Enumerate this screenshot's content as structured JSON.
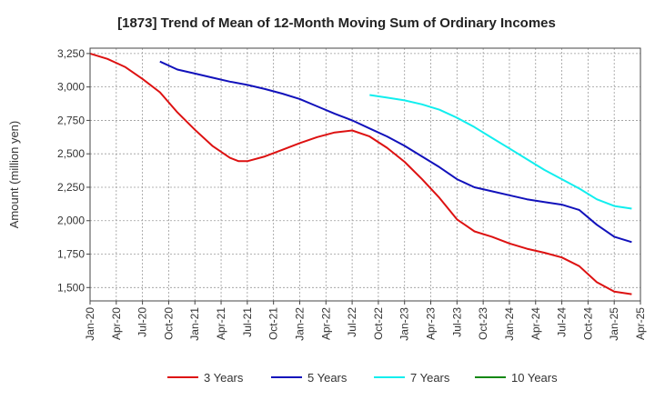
{
  "chart_data": {
    "type": "line",
    "title": "[1873]  Trend of Mean of 12-Month Moving Sum of Ordinary Incomes",
    "xlabel": "",
    "ylabel": "Amount (million yen)",
    "ylim": [
      1400,
      3290
    ],
    "y_ticks": [
      1500,
      1750,
      2000,
      2250,
      2500,
      2750,
      3000,
      3250
    ],
    "y_tick_labels": [
      "1,500",
      "1,750",
      "2,000",
      "2,250",
      "2,500",
      "2,750",
      "3,000",
      "3,250"
    ],
    "x_range": [
      0,
      60
    ],
    "x_tick_labels": [
      "Jan-20",
      "Apr-20",
      "Jul-20",
      "Oct-20",
      "Jan-21",
      "Apr-21",
      "Jul-21",
      "Oct-21",
      "Jan-22",
      "Apr-22",
      "Jul-22",
      "Oct-22",
      "Jan-23",
      "Apr-23",
      "Jul-23",
      "Oct-23",
      "Jan-24",
      "Apr-24",
      "Jul-24",
      "Oct-24",
      "Jan-25",
      "Apr-25"
    ],
    "x_tick_step_months": 3,
    "legend_position": "bottom",
    "grid": true,
    "series": [
      {
        "name": "3 Years",
        "color": "#dd1111",
        "points": [
          [
            0,
            3250
          ],
          [
            2,
            3210
          ],
          [
            4,
            3150
          ],
          [
            6,
            3060
          ],
          [
            8,
            2960
          ],
          [
            10,
            2810
          ],
          [
            12,
            2680
          ],
          [
            14,
            2560
          ],
          [
            16,
            2470
          ],
          [
            17,
            2445
          ],
          [
            18,
            2445
          ],
          [
            20,
            2480
          ],
          [
            22,
            2530
          ],
          [
            24,
            2580
          ],
          [
            26,
            2625
          ],
          [
            28,
            2660
          ],
          [
            30,
            2675
          ],
          [
            32,
            2630
          ],
          [
            34,
            2545
          ],
          [
            36,
            2440
          ],
          [
            38,
            2310
          ],
          [
            40,
            2170
          ],
          [
            42,
            2010
          ],
          [
            44,
            1920
          ],
          [
            46,
            1880
          ],
          [
            48,
            1830
          ],
          [
            50,
            1790
          ],
          [
            52,
            1760
          ],
          [
            54,
            1725
          ],
          [
            56,
            1660
          ],
          [
            58,
            1540
          ],
          [
            60,
            1470
          ],
          [
            62,
            1450
          ]
        ]
      },
      {
        "name": "5 Years",
        "color": "#1111bb",
        "points": [
          [
            8,
            3190
          ],
          [
            10,
            3130
          ],
          [
            12,
            3100
          ],
          [
            14,
            3070
          ],
          [
            16,
            3040
          ],
          [
            18,
            3015
          ],
          [
            20,
            2985
          ],
          [
            22,
            2950
          ],
          [
            24,
            2910
          ],
          [
            26,
            2855
          ],
          [
            28,
            2800
          ],
          [
            30,
            2750
          ],
          [
            32,
            2690
          ],
          [
            34,
            2630
          ],
          [
            36,
            2560
          ],
          [
            38,
            2480
          ],
          [
            40,
            2400
          ],
          [
            42,
            2310
          ],
          [
            44,
            2250
          ],
          [
            46,
            2220
          ],
          [
            48,
            2190
          ],
          [
            50,
            2160
          ],
          [
            52,
            2140
          ],
          [
            54,
            2120
          ],
          [
            56,
            2080
          ],
          [
            58,
            1970
          ],
          [
            60,
            1880
          ],
          [
            62,
            1840
          ]
        ]
      },
      {
        "name": "7 Years",
        "color": "#11eeee",
        "points": [
          [
            32,
            2940
          ],
          [
            34,
            2920
          ],
          [
            36,
            2900
          ],
          [
            38,
            2870
          ],
          [
            40,
            2830
          ],
          [
            42,
            2770
          ],
          [
            44,
            2700
          ],
          [
            46,
            2620
          ],
          [
            48,
            2540
          ],
          [
            50,
            2460
          ],
          [
            52,
            2380
          ],
          [
            54,
            2310
          ],
          [
            56,
            2240
          ],
          [
            58,
            2160
          ],
          [
            60,
            2110
          ],
          [
            62,
            2090
          ]
        ]
      },
      {
        "name": "10 Years",
        "color": "#118811",
        "points": []
      }
    ]
  }
}
